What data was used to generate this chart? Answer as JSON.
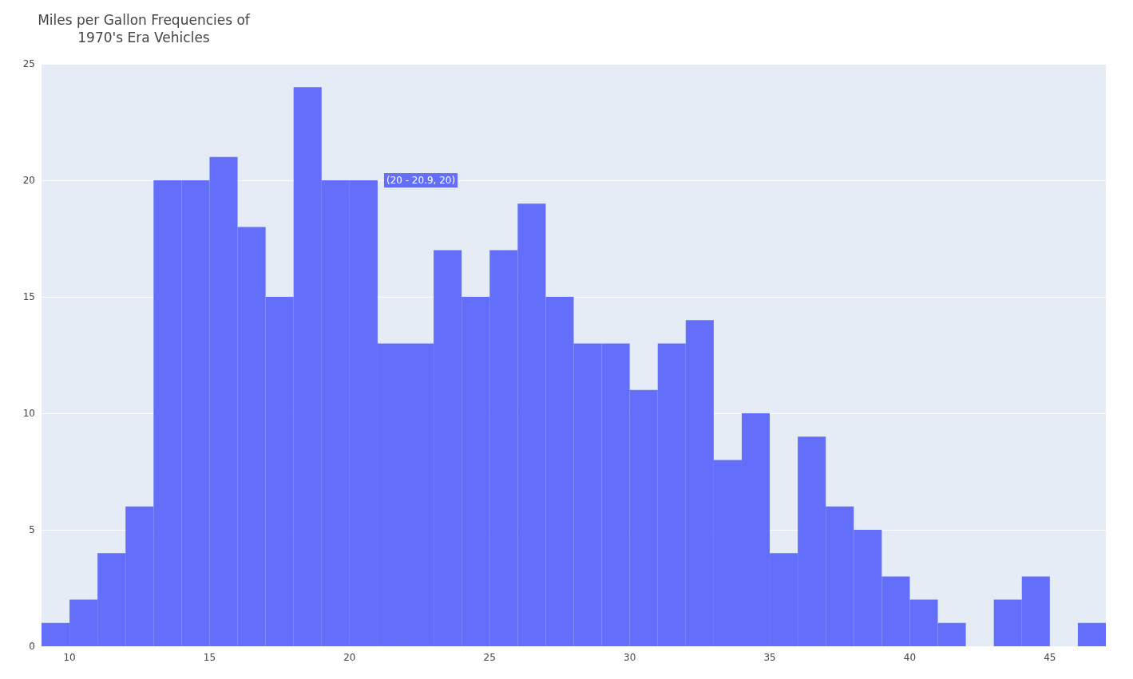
{
  "chart_data": {
    "type": "histogram",
    "title": "Miles per Gallon Frequencies of\n1970's Era Vehicles",
    "bins": [
      9,
      10,
      11,
      12,
      13,
      14,
      15,
      16,
      17,
      18,
      19,
      20,
      21,
      22,
      23,
      24,
      25,
      26,
      27,
      28,
      29,
      30,
      31,
      32,
      33,
      34,
      35,
      36,
      37,
      38,
      39,
      40,
      41,
      42,
      43,
      44,
      45,
      46,
      47
    ],
    "values": [
      1,
      2,
      4,
      6,
      20,
      20,
      21,
      18,
      15,
      24,
      20,
      20,
      13,
      13,
      17,
      15,
      17,
      19,
      15,
      13,
      13,
      11,
      13,
      14,
      8,
      10,
      4,
      9,
      6,
      5,
      3,
      2,
      1,
      0,
      2,
      3,
      0,
      1
    ],
    "color": "#636efa",
    "xlim": [
      9,
      47
    ],
    "xticks": [
      10,
      15,
      20,
      25,
      30,
      35,
      40,
      45
    ],
    "ylim": [
      0,
      25
    ],
    "yticks": [
      0,
      5,
      10,
      15,
      20,
      25
    ],
    "grid": "y",
    "annotations": [
      {
        "text": "(20 - 20.9, 20)",
        "x": 21,
        "y": 20
      }
    ]
  }
}
